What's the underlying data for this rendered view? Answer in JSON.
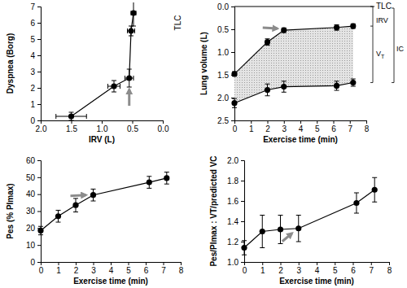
{
  "chart_data": [
    {
      "type": "line",
      "x_label": "IRV (L)",
      "y_label": "Dyspnea (Borg)",
      "x": [
        1.5,
        0.8,
        0.55,
        0.52,
        0.48
      ],
      "series": [
        {
          "color": "#000000",
          "marker": "circle",
          "line_style": "solid",
          "values": [
            0.25,
            2.1,
            2.6,
            5.5,
            6.6
          ],
          "errors": [
            0.25,
            0.35,
            0.55,
            0.3,
            0.8
          ],
          "x_errors": [
            0.25,
            0.1,
            0.07,
            0.06,
            0.04
          ]
        }
      ],
      "xlim": [
        2.0,
        0.0
      ],
      "xticks": [
        {
          "value": 2,
          "label": "2.0"
        },
        {
          "value": 1.5,
          "label": "1.5"
        },
        {
          "value": 1,
          "label": "1.0"
        },
        {
          "value": 0.5,
          "label": "0.5"
        },
        {
          "value": 0,
          "label": "0.0"
        }
      ],
      "ylim": [
        0,
        7
      ],
      "yticks": [
        0,
        1,
        2,
        3,
        4,
        5,
        6,
        7
      ],
      "annotations": [
        "TLC"
      ]
    },
    {
      "type": "area",
      "x_label": "Exercise time (min)",
      "y_label": "Lung volume (L)",
      "x": [
        0,
        2,
        3,
        6.2,
        7.2
      ],
      "series": [
        {
          "color": "#000000",
          "marker": "circle",
          "line_style": "solid",
          "values": [
            1.48,
            0.78,
            0.52,
            0.46,
            0.43
          ],
          "errors": [
            0.05,
            0.07,
            0.05,
            0.06,
            0.05
          ]
        },
        {
          "color": "#000000",
          "marker": "circle",
          "line_style": "solid",
          "values": [
            2.12,
            1.83,
            1.76,
            1.74,
            1.67
          ],
          "errors": [
            0.1,
            0.13,
            0.12,
            0.1,
            0.08
          ]
        }
      ],
      "xlim": [
        0,
        8
      ],
      "xticks": [
        0,
        1,
        2,
        3,
        4,
        5,
        6,
        7,
        8
      ],
      "ylim": [
        2.5,
        0.0
      ],
      "yticks": [
        {
          "value": 0,
          "label": "0.0"
        },
        {
          "value": 0.5,
          "label": "0.5"
        },
        {
          "value": 1,
          "label": "1.0"
        },
        {
          "value": 1.5,
          "label": "1.5"
        },
        {
          "value": 2,
          "label": "2.0"
        },
        {
          "value": 2.5,
          "label": "2.5"
        }
      ],
      "annotations": [
        "TLC",
        "IRV",
        "VT",
        "IC"
      ]
    },
    {
      "type": "line",
      "x_label": "Exercise time (min)",
      "y_label": "Pes (% PImax)",
      "x": [
        0,
        1,
        2,
        3,
        6.2,
        7.2
      ],
      "series": [
        {
          "color": "#000000",
          "marker": "circle",
          "line_style": "solid",
          "values": [
            18.5,
            27,
            33.5,
            39.5,
            47,
            49.5
          ],
          "errors": [
            2.5,
            3.5,
            4,
            3.5,
            3.5,
            3.5
          ]
        }
      ],
      "xlim": [
        0,
        8
      ],
      "xticks": [
        0,
        1,
        2,
        3,
        4,
        5,
        6,
        7,
        8
      ],
      "ylim": [
        0,
        60
      ],
      "yticks": [
        0,
        10,
        20,
        30,
        40,
        50,
        60
      ]
    },
    {
      "type": "line",
      "x_label": "Exercise time (min)",
      "y_label": "Pes/PImax : VT/predicted VC",
      "x": [
        0,
        1,
        2,
        3,
        6.2,
        7.2
      ],
      "series": [
        {
          "color": "#000000",
          "marker": "circle",
          "line_style": "solid",
          "values": [
            1.14,
            1.3,
            1.32,
            1.33,
            1.58,
            1.71
          ],
          "errors": [
            0.07,
            0.16,
            0.14,
            0.13,
            0.1,
            0.12
          ]
        }
      ],
      "xlim": [
        0,
        8
      ],
      "xticks": [
        0,
        1,
        2,
        3,
        4,
        5,
        6,
        7,
        8
      ],
      "ylim": [
        1.0,
        2.0
      ],
      "yticks": [
        {
          "value": 1,
          "label": "1.0"
        },
        {
          "value": 1.2,
          "label": "1.2"
        },
        {
          "value": 1.4,
          "label": "1.4"
        },
        {
          "value": 1.6,
          "label": "1.6"
        },
        {
          "value": 1.8,
          "label": "1.8"
        },
        {
          "value": 2,
          "label": "2.0"
        }
      ]
    }
  ]
}
